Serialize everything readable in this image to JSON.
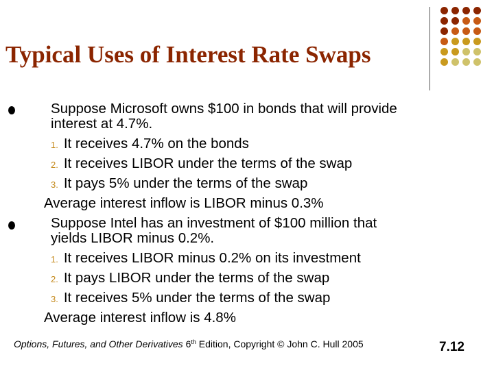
{
  "title": "Typical Uses of Interest Rate Swaps",
  "microsoft": {
    "intro_line1": "Suppose Microsoft owns $100 in bonds that will provide",
    "intro_line2": "interest at 4.7%.",
    "steps": [
      {
        "num": "1.",
        "text": "It receives 4.7% on the bonds"
      },
      {
        "num": "2.",
        "text": "It receives LIBOR under the terms of the swap"
      },
      {
        "num": "3.",
        "text": "It pays 5% under the terms of the swap"
      }
    ],
    "summary": "Average interest inflow is LIBOR minus 0.3%"
  },
  "intel": {
    "intro_line1": "Suppose Intel has an investment of $100 million that",
    "intro_line2": "yields LIBOR minus 0.2%.",
    "steps": [
      {
        "num": "1.",
        "text": "It receives LIBOR minus 0.2% on its investment"
      },
      {
        "num": "2.",
        "text": "It pays LIBOR under the terms of the swap"
      },
      {
        "num": "3.",
        "text": "It receives 5% under the terms of the swap"
      }
    ],
    "summary": "Average interest inflow is 4.8%"
  },
  "footer": {
    "book_title": "Options, Futures, and Other Derivatives",
    "edition_num": "6",
    "edition_sup": "th",
    "rest": " Edition, Copyright © John C. Hull 2005"
  },
  "slide_number": "7.12",
  "colors": {
    "title": "#8b2500",
    "list_number": "#c4891b",
    "dot_dark": "#8b2500",
    "dot_orange": "#c75a14",
    "dot_gold": "#c99a1e",
    "dot_olive": "#cfc26a"
  }
}
